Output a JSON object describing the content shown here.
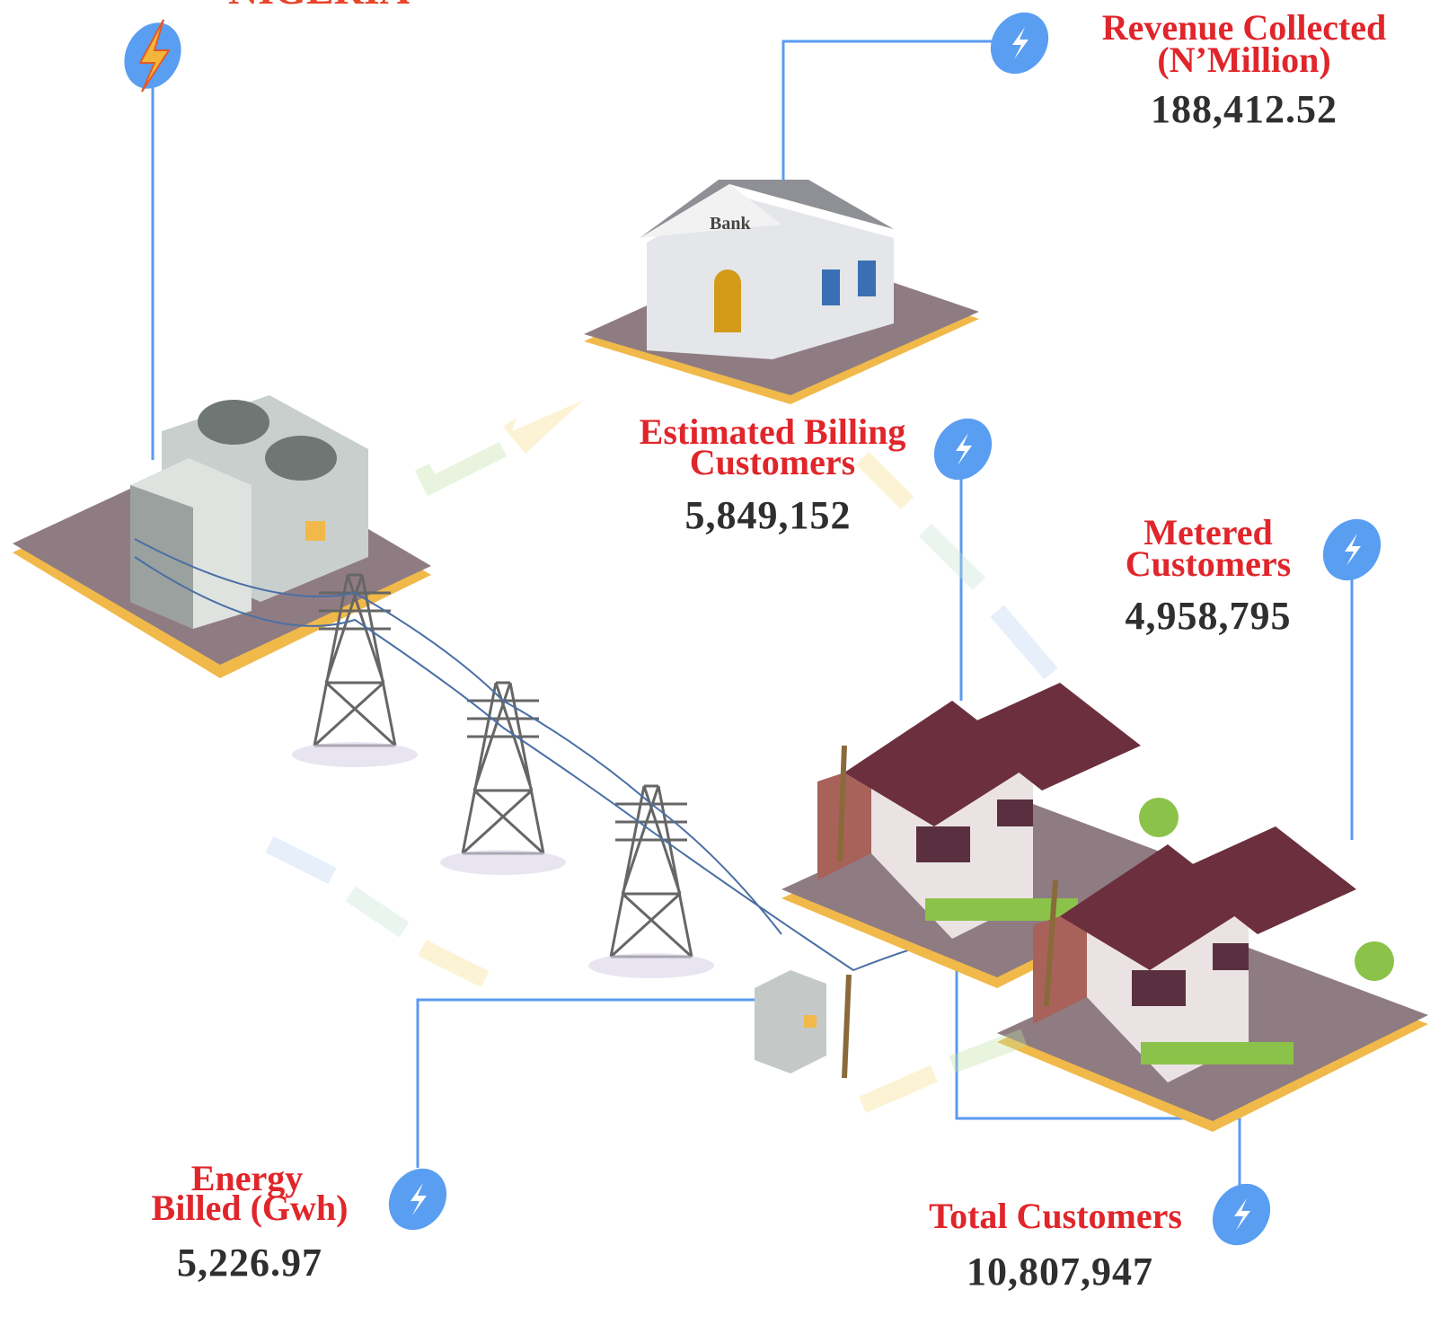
{
  "header": {
    "title": "NIGERIA"
  },
  "stats": [
    {
      "label_lines": [
        "Revenue Collected",
        "(N’Million)"
      ],
      "value": "188,412.52"
    },
    {
      "label_lines": [
        "Estimated Billing",
        "Customers"
      ],
      "value": "5,849,152"
    },
    {
      "label_lines": [
        "Metered",
        "Customers"
      ],
      "value": "4,958,795"
    },
    {
      "label_lines": [
        "Energy",
        "Billed (Gwh)"
      ],
      "value": "5,226.97"
    },
    {
      "label_lines": [
        "Total Customers"
      ],
      "value": "10,807,947"
    }
  ]
}
